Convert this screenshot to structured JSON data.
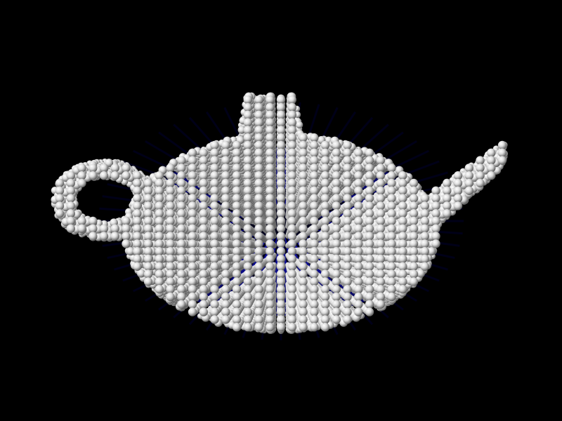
{
  "scene": {
    "subject": "teapot-voxel-render",
    "colors": {
      "background": "#000000",
      "sphere_highlight": "#ffffff",
      "sphere_mid": "#d8d8d8",
      "sphere_shadow": "#6e6e6e",
      "interior": "#0a0a8c",
      "interior_deep": "#00003a"
    }
  }
}
